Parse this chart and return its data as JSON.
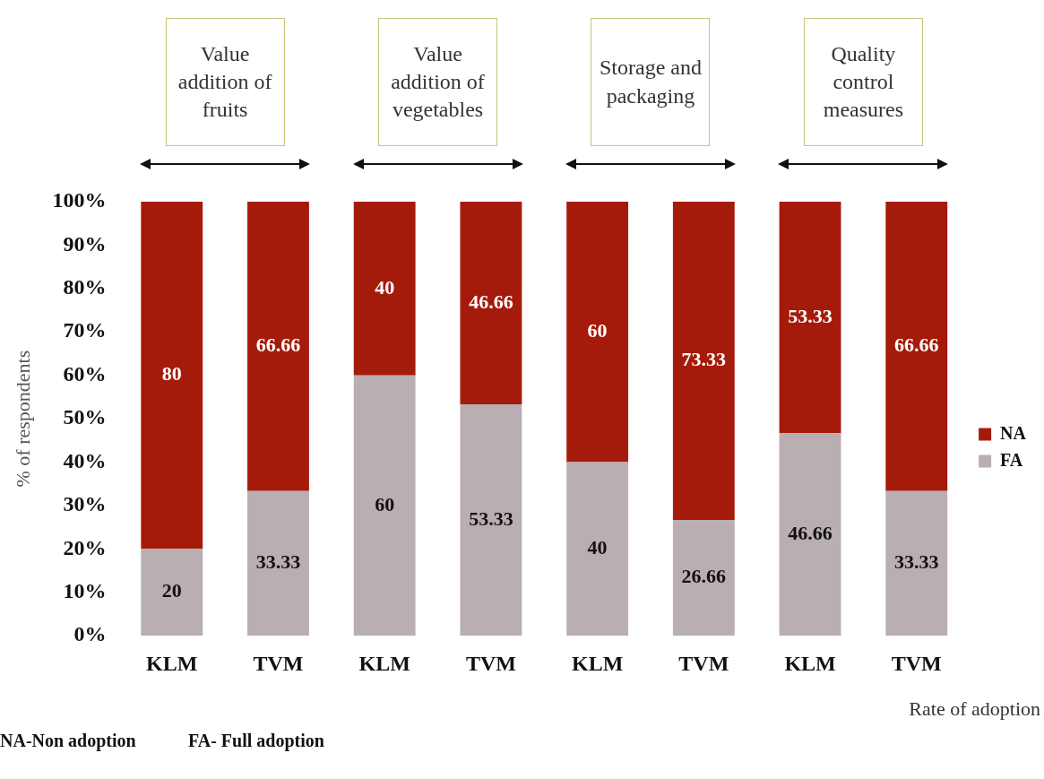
{
  "chart_data": {
    "type": "bar",
    "stacked": true,
    "ylabel": "% of respondents",
    "xlabel": "Rate of adoption",
    "categories": [
      "KLM",
      "TVM",
      "KLM",
      "TVM",
      "KLM",
      "TVM",
      "KLM",
      "TVM"
    ],
    "series": [
      {
        "name": "FA",
        "color": "#b9aeb2",
        "values": [
          20,
          33.33,
          60,
          53.33,
          40,
          26.66,
          46.66,
          33.33
        ]
      },
      {
        "name": "NA",
        "color": "#a51b0b",
        "values": [
          80,
          66.66,
          40,
          46.66,
          60,
          73.33,
          53.33,
          66.66
        ]
      }
    ],
    "ylim": [
      0,
      100
    ],
    "yticks": [
      {
        "value": 0,
        "label": "0%"
      },
      {
        "value": 10,
        "label": "10%"
      },
      {
        "value": 20,
        "label": "20%"
      },
      {
        "value": 30,
        "label": "30%"
      },
      {
        "value": 40,
        "label": "40%"
      },
      {
        "value": 50,
        "label": "50%"
      },
      {
        "value": 60,
        "label": "60%"
      },
      {
        "value": 70,
        "label": "70%"
      },
      {
        "value": 80,
        "label": "80%"
      },
      {
        "value": 90,
        "label": "90%"
      },
      {
        "value": 100,
        "label": "100%"
      }
    ],
    "grid": false,
    "legend": "right",
    "data_labels": true,
    "annotations": [
      "Value addition of fruits",
      "Value addition of vegetables",
      "Storage and packaging",
      "Quality control measures",
      "NA-Non adoption",
      "FA- Full adoption"
    ]
  }
}
